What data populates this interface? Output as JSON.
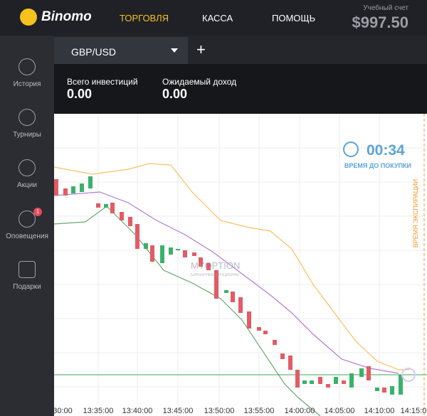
{
  "header": {
    "logo": "Binomo",
    "nav": [
      "ТОРГОВЛЯ",
      "КАССА",
      "ПОМОЩЬ"
    ],
    "account_label": "Учебный счет",
    "balance": "$997.50"
  },
  "sidebar": {
    "items": [
      "История",
      "Турниры",
      "Акции",
      "Оповещения",
      "Подарки"
    ],
    "badge": "1"
  },
  "tab": {
    "pair": "GBP/USD",
    "add": "+"
  },
  "panel": {
    "investments_label": "Всего инвестиций",
    "investments": "0.00",
    "income_label": "Ожидаемый доход",
    "income": "0.00"
  },
  "chart": {
    "timer": "00:34",
    "timer_label": "ВРЕМЯ ДО ПОКУПКИ",
    "expiration_label": "ВРЕМЯ ЭКСПИРАЦИИ",
    "watermark": "MYOPTION",
    "watermark_sub": "БИНАРНЫЕ ОПЦИОНЫ",
    "times": [
      "30:00",
      "13:35:00",
      "13:40:00",
      "13:45:00",
      "13:50:00",
      "13:55:00",
      "14:00:00",
      "14:05:00",
      "14:10:00",
      "14:15:0"
    ]
  }
}
